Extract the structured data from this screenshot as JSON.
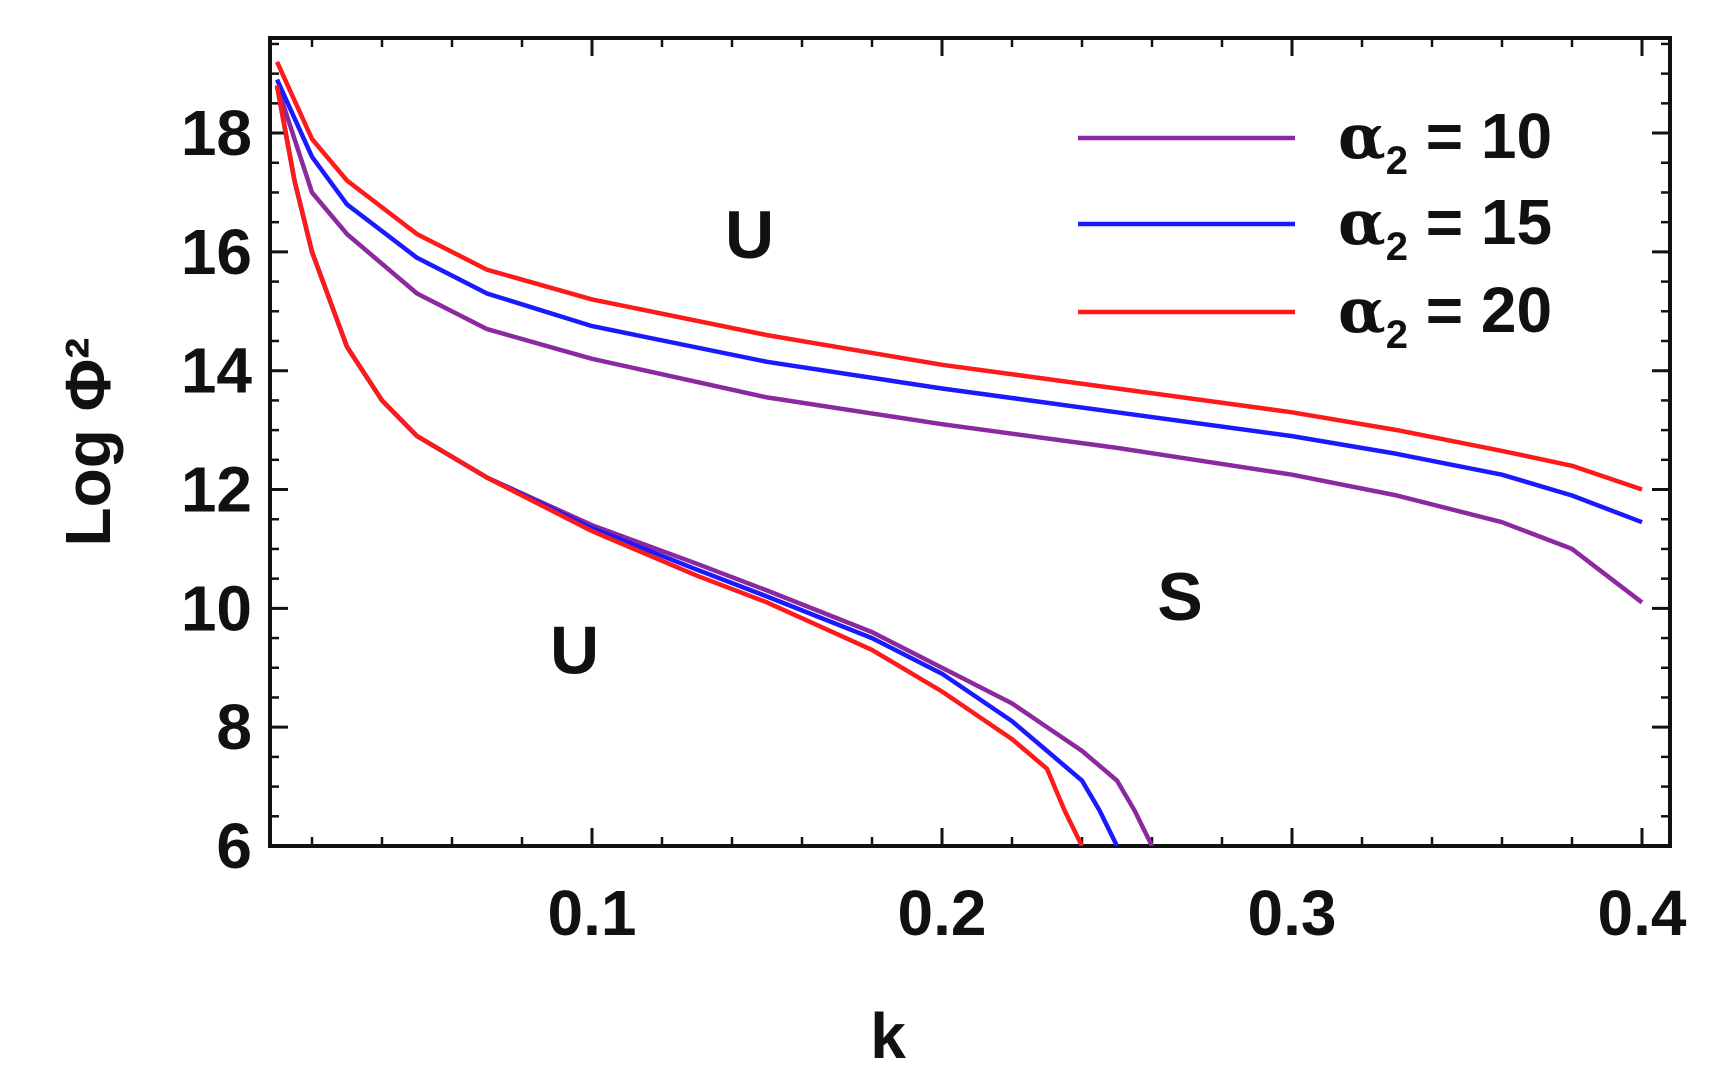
{
  "chart_data": {
    "type": "line",
    "xlabel": "k",
    "ylabel": "Log Φ²",
    "xlim": [
      0.008,
      0.408
    ],
    "ylim": [
      6,
      19.6
    ],
    "xticks": [
      0.1,
      0.2,
      0.3,
      0.4
    ],
    "xtick_labels": [
      "0.1",
      "0.2",
      "0.3",
      "0.4"
    ],
    "yticks": [
      6,
      8,
      10,
      12,
      14,
      16,
      18
    ],
    "ytick_labels": [
      "6",
      "8",
      "10",
      "12",
      "14",
      "16",
      "18"
    ],
    "grid": false,
    "legend_position": "top-right",
    "legend_symbol": "α",
    "legend_subscript": "2",
    "series": [
      {
        "name": "α2 = 10",
        "legend_value": "10",
        "color": "#8b2a9e",
        "upper": {
          "x": [
            0.01,
            0.02,
            0.03,
            0.05,
            0.07,
            0.1,
            0.15,
            0.2,
            0.25,
            0.3,
            0.33,
            0.36,
            0.38,
            0.4
          ],
          "y": [
            18.8,
            17.0,
            16.3,
            15.3,
            14.7,
            14.2,
            13.55,
            13.1,
            12.7,
            12.25,
            11.9,
            11.45,
            11.0,
            10.1
          ]
        },
        "lower": {
          "x": [
            0.01,
            0.015,
            0.02,
            0.03,
            0.04,
            0.05,
            0.07,
            0.1,
            0.13,
            0.15,
            0.18,
            0.2,
            0.22,
            0.23,
            0.24,
            0.25,
            0.255,
            0.26
          ],
          "y": [
            18.8,
            17.2,
            16.0,
            14.4,
            13.5,
            12.9,
            12.2,
            11.4,
            10.75,
            10.3,
            9.6,
            9.0,
            8.4,
            8.0,
            7.6,
            7.1,
            6.6,
            6.0
          ]
        }
      },
      {
        "name": "α2 = 15",
        "legend_value": "15",
        "color": "#1a1aff",
        "upper": {
          "x": [
            0.01,
            0.02,
            0.03,
            0.05,
            0.07,
            0.1,
            0.15,
            0.2,
            0.25,
            0.3,
            0.33,
            0.36,
            0.38,
            0.4
          ],
          "y": [
            18.9,
            17.6,
            16.8,
            15.9,
            15.3,
            14.75,
            14.15,
            13.7,
            13.3,
            12.9,
            12.6,
            12.25,
            11.9,
            11.45
          ]
        },
        "lower": {
          "x": [
            0.01,
            0.015,
            0.02,
            0.03,
            0.04,
            0.05,
            0.07,
            0.1,
            0.13,
            0.15,
            0.18,
            0.2,
            0.22,
            0.23,
            0.24,
            0.245,
            0.25
          ],
          "y": [
            18.8,
            17.2,
            16.0,
            14.4,
            13.5,
            12.9,
            12.2,
            11.35,
            10.65,
            10.2,
            9.5,
            8.9,
            8.1,
            7.6,
            7.1,
            6.6,
            6.0
          ]
        }
      },
      {
        "name": "α2 = 20",
        "legend_value": "20",
        "color": "#ff1a1a",
        "upper": {
          "x": [
            0.01,
            0.02,
            0.03,
            0.05,
            0.07,
            0.1,
            0.15,
            0.2,
            0.25,
            0.3,
            0.33,
            0.36,
            0.38,
            0.4
          ],
          "y": [
            19.2,
            17.9,
            17.2,
            16.3,
            15.7,
            15.2,
            14.6,
            14.1,
            13.7,
            13.3,
            13.0,
            12.65,
            12.4,
            12.0
          ]
        },
        "lower": {
          "x": [
            0.01,
            0.015,
            0.02,
            0.03,
            0.04,
            0.05,
            0.07,
            0.1,
            0.13,
            0.15,
            0.18,
            0.2,
            0.21,
            0.22,
            0.23,
            0.235,
            0.24
          ],
          "y": [
            18.8,
            17.2,
            16.0,
            14.4,
            13.5,
            12.9,
            12.2,
            11.3,
            10.55,
            10.1,
            9.3,
            8.6,
            8.2,
            7.8,
            7.3,
            6.6,
            6.0
          ]
        }
      }
    ],
    "annotations": [
      {
        "text": "U",
        "x": 0.145,
        "y": 15.9
      },
      {
        "text": "U",
        "x": 0.095,
        "y": 8.9
      },
      {
        "text": "S",
        "x": 0.268,
        "y": 9.8
      }
    ]
  }
}
